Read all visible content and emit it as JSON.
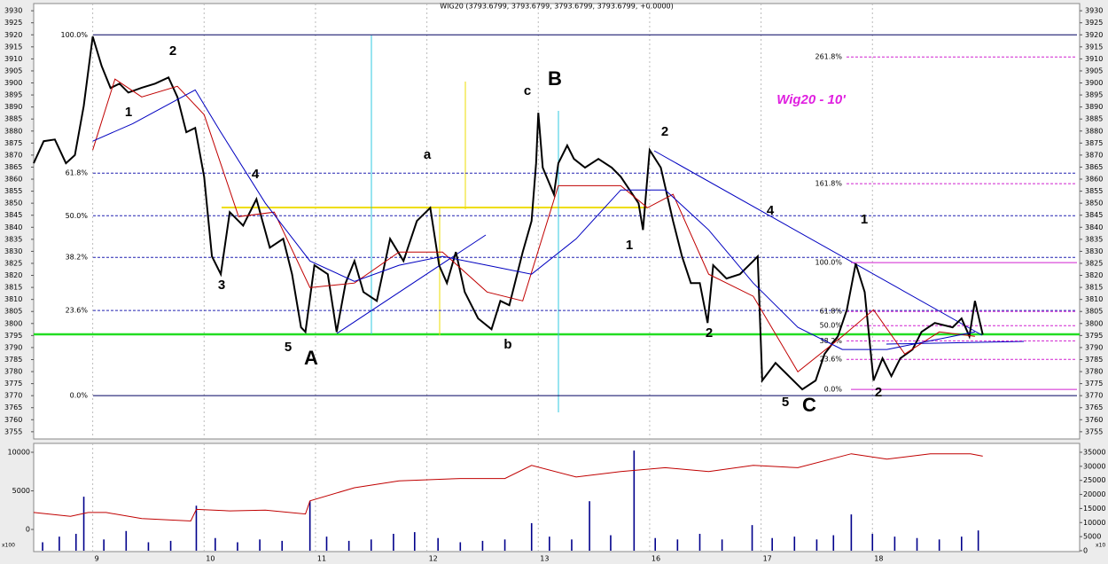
{
  "chart_data": [
    {
      "type": "line",
      "title": "WIG20 (3793.6799, 3793.6799, 3793.6799, 3793.6799, +0.0000)",
      "annotation": "Wig20 - 10'",
      "xlim": [
        -0.53,
        8.86
      ],
      "xticks": [
        {
          "value": 0,
          "label": "9"
        },
        {
          "value": 1,
          "label": "10"
        },
        {
          "value": 2,
          "label": "11"
        },
        {
          "value": 3,
          "label": "12"
        },
        {
          "value": 4,
          "label": "13"
        },
        {
          "value": 5,
          "label": "16"
        },
        {
          "value": 6,
          "label": "17"
        },
        {
          "value": 7,
          "label": "18"
        }
      ],
      "ylim": [
        3752,
        3933
      ],
      "yticks": [
        3755,
        3760,
        3765,
        3770,
        3775,
        3780,
        3785,
        3790,
        3795,
        3800,
        3805,
        3810,
        3815,
        3820,
        3825,
        3830,
        3835,
        3840,
        3845,
        3850,
        3855,
        3860,
        3865,
        3870,
        3875,
        3880,
        3885,
        3890,
        3895,
        3900,
        3905,
        3910,
        3915,
        3920,
        3925,
        3930
      ],
      "grid": true,
      "series": [
        {
          "color": "#000000",
          "x": [
            -0.53,
            -0.44,
            -0.34,
            -0.24,
            -0.16,
            -0.08,
            0,
            0.08,
            0.16,
            0.24,
            0.32,
            0.44,
            0.56,
            0.68,
            0.76,
            0.84,
            0.92,
            1.0,
            1.07,
            1.15,
            1.23,
            1.35,
            1.47,
            1.59,
            1.71,
            1.79,
            1.87,
            1.91,
            1.99,
            2.11,
            2.19,
            2.27,
            2.35,
            2.43,
            2.55,
            2.67,
            2.79,
            2.91,
            3.03,
            3.11,
            3.18,
            3.26,
            3.34,
            3.46,
            3.58,
            3.66,
            3.74,
            3.86,
            3.94,
            3.98,
            4.0,
            4.04,
            4.14,
            4.18,
            4.26,
            4.32,
            4.42,
            4.54,
            4.66,
            4.74,
            4.82,
            4.9,
            4.94,
            5.0,
            5.1,
            5.21,
            5.29,
            5.37,
            5.45,
            5.52,
            5.57,
            5.69,
            5.81,
            5.93,
            5.97,
            6.01,
            6.13,
            6.25,
            6.37,
            6.49,
            6.57,
            6.69,
            6.77,
            6.85,
            6.93,
            7.01,
            7.09,
            7.17,
            7.25,
            7.36,
            7.44,
            7.56,
            7.72,
            7.8,
            7.87,
            7.92,
            7.99
          ],
          "values": [
            3866.6,
            3875.8,
            3876.5,
            3866.6,
            3870,
            3890.5,
            3919.3,
            3907,
            3897.9,
            3899.7,
            3896,
            3898,
            3899.7,
            3902.3,
            3894.2,
            3879.5,
            3881.3,
            3861,
            3827.9,
            3820.5,
            3846.3,
            3840.7,
            3851.7,
            3831.5,
            3835.2,
            3820.5,
            3798.4,
            3796.5,
            3824.2,
            3820.5,
            3796.5,
            3816.8,
            3826,
            3813.1,
            3809.4,
            3835.2,
            3826,
            3842.6,
            3848.1,
            3824.2,
            3816.8,
            3829.7,
            3813.1,
            3802.1,
            3797.6,
            3809.4,
            3807.6,
            3829.7,
            3842.6,
            3866.6,
            3887.6,
            3864.8,
            3853.7,
            3866.6,
            3874,
            3868.4,
            3864.8,
            3868.4,
            3864.8,
            3861,
            3855.5,
            3850,
            3838.9,
            3872.1,
            3864.8,
            3842.6,
            3827.9,
            3816.8,
            3816.8,
            3800.2,
            3824.2,
            3818.7,
            3820.5,
            3826,
            3827.9,
            3776.3,
            3783.6,
            3778.1,
            3772.6,
            3776.3,
            3787.3,
            3794.7,
            3805.7,
            3824.9,
            3813.1,
            3776.3,
            3785.5,
            3778.1,
            3785.5,
            3789.2,
            3796.5,
            3800.2,
            3798.4,
            3802.1,
            3794.7,
            3809.4,
            3795.4
          ]
        },
        {
          "color": "#c00000",
          "x": [
            0,
            0.2,
            0.44,
            0.76,
            1.0,
            1.31,
            1.63,
            1.95,
            2.35,
            2.75,
            3.14,
            3.54,
            3.86,
            4.18,
            4.74,
            4.98,
            5.21,
            5.53,
            5.93,
            6.33,
            6.73,
            7.01,
            7.29,
            7.6,
            7.92
          ],
          "values": [
            3872.1,
            3901.6,
            3894.2,
            3898.6,
            3886.8,
            3844.4,
            3846.3,
            3814.9,
            3816.8,
            3829.7,
            3829.7,
            3813.1,
            3809.4,
            3857.3,
            3857.3,
            3848.1,
            3853.7,
            3820.5,
            3811.3,
            3779.9,
            3794.7,
            3805.7,
            3787.3,
            3796.5,
            3794.7
          ]
        },
        {
          "color": "#0000c0",
          "x": [
            0,
            0.36,
            0.92,
            1.15,
            1.55,
            1.95,
            2.35,
            2.75,
            3.14,
            3.54,
            3.94,
            4.34,
            4.74,
            5.14,
            5.53,
            5.93,
            6.33,
            6.73,
            7.13,
            7.52,
            7.92
          ],
          "values": [
            3875.8,
            3883.1,
            3897.1,
            3879.5,
            3850,
            3826,
            3817.5,
            3824.2,
            3827.9,
            3824.2,
            3820.5,
            3835.2,
            3855.5,
            3855.5,
            3838.9,
            3816.8,
            3798.4,
            3789.2,
            3789.2,
            3792.8,
            3796.5
          ]
        }
      ],
      "fib_left": [
        {
          "value": 3920,
          "label": "100.0%"
        },
        {
          "value": 3862.5,
          "label": "61.8%"
        },
        {
          "value": 3844.8,
          "label": "50.0%"
        },
        {
          "value": 3827.5,
          "label": "38.2%"
        },
        {
          "value": 3805.4,
          "label": "23.6%"
        },
        {
          "value": 3770,
          "label": "0.0%"
        }
      ],
      "fib_right": [
        {
          "value": 3910.8,
          "label": "261.8%"
        },
        {
          "value": 3858.1,
          "label": "161.8%"
        },
        {
          "value": 3825.3,
          "label": "100.0%"
        },
        {
          "value": 3805,
          "label": "61.8%"
        },
        {
          "value": 3799.1,
          "label": "50.0%"
        },
        {
          "value": 3792.8,
          "label": "38.2%"
        },
        {
          "value": 3785.1,
          "label": "23.6%"
        },
        {
          "value": 3772.6,
          "label": "0.0%"
        }
      ],
      "wave_labels": [
        "1",
        "2",
        "3",
        "4",
        "5",
        "A",
        "a",
        "b",
        "c",
        "B",
        "1",
        "2",
        "2",
        "4",
        "5",
        "C",
        "1",
        "2"
      ]
    },
    {
      "type": "bar",
      "axis_unit": "x100",
      "axis2_unit": "x10",
      "ylim": [
        -2870,
        11150
      ],
      "yticks": [
        0,
        5000,
        10000
      ],
      "y2lim": [
        -315,
        38150
      ],
      "y2ticks": [
        0,
        5000,
        10000,
        15000,
        20000,
        25000,
        30000,
        35000
      ],
      "series": [
        {
          "color": "#00008b",
          "axis": "y2",
          "x": [
            -0.45,
            -0.3,
            -0.15,
            -0.08,
            0.1,
            0.3,
            0.5,
            0.7,
            0.93,
            1.1,
            1.3,
            1.5,
            1.7,
            1.95,
            2.1,
            2.3,
            2.5,
            2.7,
            2.89,
            3.1,
            3.3,
            3.5,
            3.7,
            3.94,
            4.1,
            4.3,
            4.46,
            4.65,
            4.86,
            5.05,
            5.25,
            5.45,
            5.65,
            5.92,
            6.1,
            6.3,
            6.5,
            6.65,
            6.81,
            7.0,
            7.2,
            7.4,
            7.6,
            7.8,
            7.95
          ],
          "values": [
            3000,
            5000,
            6000,
            19200,
            4000,
            7000,
            3000,
            3500,
            16000,
            4500,
            3000,
            4000,
            3500,
            17600,
            5000,
            3500,
            4000,
            6000,
            6600,
            4500,
            3000,
            3500,
            4000,
            9800,
            5000,
            4000,
            17600,
            5500,
            35600,
            4500,
            4000,
            6000,
            4000,
            9100,
            4500,
            5000,
            4000,
            5500,
            12900,
            6000,
            5000,
            4500,
            4000,
            5000,
            7200
          ]
        },
        {
          "color": "#c00000",
          "x": [
            -0.53,
            -0.2,
            -0.04,
            0.12,
            0.44,
            0.88,
            0.93,
            1.23,
            1.55,
            1.91,
            1.95,
            2.35,
            2.75,
            3.3,
            3.7,
            3.94,
            4.34,
            4.74,
            5.14,
            5.53,
            5.93,
            6.33,
            6.81,
            7.13,
            7.52,
            7.88,
            7.99
          ],
          "values": [
            2200,
            1700,
            2200,
            2200,
            1400,
            1100,
            2600,
            2400,
            2500,
            2000,
            3700,
            5400,
            6300,
            6600,
            6600,
            8300,
            6800,
            7500,
            8000,
            7500,
            8300,
            8000,
            9800,
            9100,
            9800,
            9800,
            9500
          ]
        }
      ]
    }
  ]
}
